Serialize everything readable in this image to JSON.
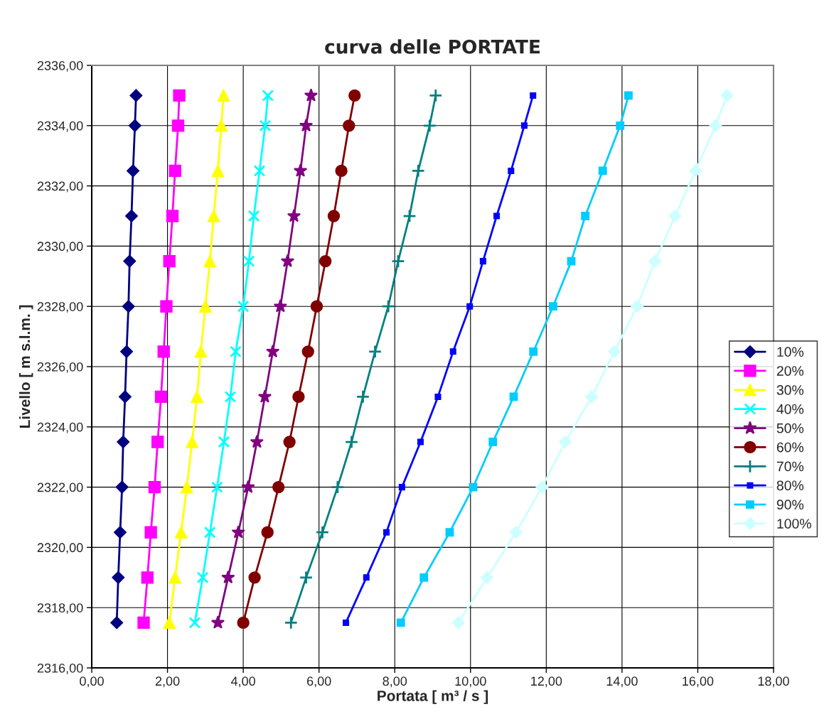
{
  "chart_data": {
    "type": "line",
    "title": "curva delle PORTATE",
    "xlabel": "Portata [ m³ / s ]",
    "ylabel": "Livello [ m s.l.m. ]",
    "xlim": [
      0,
      18
    ],
    "ylim": [
      2316,
      2336
    ],
    "xticks": [
      {
        "value": 0,
        "label": "0,00"
      },
      {
        "value": 2,
        "label": "2,00"
      },
      {
        "value": 4,
        "label": "4,00"
      },
      {
        "value": 6,
        "label": "6,00"
      },
      {
        "value": 8,
        "label": "8,00"
      },
      {
        "value": 10,
        "label": "10,00"
      },
      {
        "value": 12,
        "label": "12,00"
      },
      {
        "value": 14,
        "label": "14,00"
      },
      {
        "value": 16,
        "label": "16,00"
      },
      {
        "value": 18,
        "label": "18,00"
      }
    ],
    "yticks": [
      {
        "value": 2316,
        "label": "2316,00"
      },
      {
        "value": 2318,
        "label": "2318,00"
      },
      {
        "value": 2320,
        "label": "2320,00"
      },
      {
        "value": 2322,
        "label": "2322,00"
      },
      {
        "value": 2324,
        "label": "2324,00"
      },
      {
        "value": 2326,
        "label": "2326,00"
      },
      {
        "value": 2328,
        "label": "2328,00"
      },
      {
        "value": 2330,
        "label": "2330,00"
      },
      {
        "value": 2332,
        "label": "2332,00"
      },
      {
        "value": 2334,
        "label": "2334,00"
      },
      {
        "value": 2336,
        "label": "2336,00"
      }
    ],
    "grid": true,
    "legend": "right",
    "line_style": "solid",
    "series": [
      {
        "name": "10%",
        "color": "#000080",
        "marker": "diamond",
        "x": [
          0.66,
          0.7,
          0.75,
          0.8,
          0.83,
          0.88,
          0.92,
          0.97,
          1.0,
          1.05,
          1.09,
          1.14,
          1.17
        ],
        "values": [
          2317.5,
          2319,
          2320.5,
          2322,
          2323.5,
          2325,
          2326.5,
          2328,
          2329.5,
          2331,
          2332.5,
          2334,
          2335
        ]
      },
      {
        "name": "20%",
        "color": "#ff00ff",
        "marker": "square",
        "x": [
          1.37,
          1.47,
          1.56,
          1.66,
          1.74,
          1.83,
          1.9,
          1.97,
          2.05,
          2.13,
          2.2,
          2.28,
          2.31
        ],
        "values": [
          2317.5,
          2319,
          2320.5,
          2322,
          2323.5,
          2325,
          2326.5,
          2328,
          2329.5,
          2331,
          2332.5,
          2334,
          2335
        ]
      },
      {
        "name": "30%",
        "color": "#ffff00",
        "marker": "triangle",
        "x": [
          2.05,
          2.2,
          2.36,
          2.51,
          2.65,
          2.78,
          2.88,
          3.0,
          3.12,
          3.22,
          3.33,
          3.42,
          3.48
        ],
        "values": [
          2317.5,
          2319,
          2320.5,
          2322,
          2323.5,
          2325,
          2326.5,
          2328,
          2329.5,
          2331,
          2332.5,
          2334,
          2335
        ]
      },
      {
        "name": "40%",
        "color": "#00ffff",
        "marker": "cross",
        "x": [
          2.72,
          2.93,
          3.12,
          3.31,
          3.49,
          3.66,
          3.8,
          4.0,
          4.15,
          4.28,
          4.43,
          4.58,
          4.65
        ],
        "values": [
          2317.5,
          2319,
          2320.5,
          2322,
          2323.5,
          2325,
          2326.5,
          2328,
          2329.5,
          2331,
          2332.5,
          2334,
          2335
        ]
      },
      {
        "name": "50%",
        "color": "#800080",
        "marker": "star",
        "x": [
          3.33,
          3.6,
          3.87,
          4.13,
          4.36,
          4.57,
          4.78,
          4.98,
          5.17,
          5.34,
          5.51,
          5.66,
          5.79
        ],
        "values": [
          2317.5,
          2319,
          2320.5,
          2322,
          2323.5,
          2325,
          2326.5,
          2328,
          2329.5,
          2331,
          2332.5,
          2334,
          2335
        ]
      },
      {
        "name": "60%",
        "color": "#800000",
        "marker": "circle",
        "x": [
          4.0,
          4.3,
          4.64,
          4.93,
          5.22,
          5.46,
          5.71,
          5.94,
          6.17,
          6.39,
          6.59,
          6.79,
          6.94
        ],
        "values": [
          2317.5,
          2319,
          2320.5,
          2322,
          2323.5,
          2325,
          2326.5,
          2328,
          2329.5,
          2331,
          2332.5,
          2334,
          2335
        ]
      },
      {
        "name": "70%",
        "color": "#008080",
        "marker": "plus",
        "x": [
          5.26,
          5.66,
          6.09,
          6.49,
          6.86,
          7.16,
          7.48,
          7.83,
          8.09,
          8.39,
          8.62,
          8.92,
          9.08
        ],
        "values": [
          2317.5,
          2319,
          2320.5,
          2322,
          2323.5,
          2325,
          2326.5,
          2328,
          2329.5,
          2331,
          2332.5,
          2334,
          2335
        ]
      },
      {
        "name": "80%",
        "color": "#0000ff",
        "marker": "square",
        "x": [
          6.71,
          7.25,
          7.78,
          8.19,
          8.68,
          9.14,
          9.54,
          9.98,
          10.33,
          10.69,
          11.07,
          11.42,
          11.65
        ],
        "values": [
          2317.5,
          2319,
          2320.5,
          2322,
          2323.5,
          2325,
          2326.5,
          2328,
          2329.5,
          2331,
          2332.5,
          2334,
          2335
        ]
      },
      {
        "name": "90%",
        "color": "#00ccff",
        "marker": "square",
        "x": [
          8.16,
          8.77,
          9.45,
          10.07,
          10.59,
          11.14,
          11.66,
          12.18,
          12.66,
          13.03,
          13.49,
          13.95,
          14.17
        ],
        "values": [
          2317.5,
          2319,
          2320.5,
          2322,
          2323.5,
          2325,
          2326.5,
          2328,
          2329.5,
          2331,
          2332.5,
          2334,
          2335
        ]
      },
      {
        "name": "100%",
        "color": "#ccffff",
        "marker": "diamond",
        "x": [
          9.68,
          10.44,
          11.2,
          11.89,
          12.5,
          13.2,
          13.8,
          14.4,
          14.87,
          15.4,
          15.94,
          16.47,
          16.77
        ],
        "values": [
          2317.5,
          2319,
          2320.5,
          2322,
          2323.5,
          2325,
          2326.5,
          2328,
          2329.5,
          2331,
          2332.5,
          2334,
          2335
        ]
      }
    ]
  }
}
